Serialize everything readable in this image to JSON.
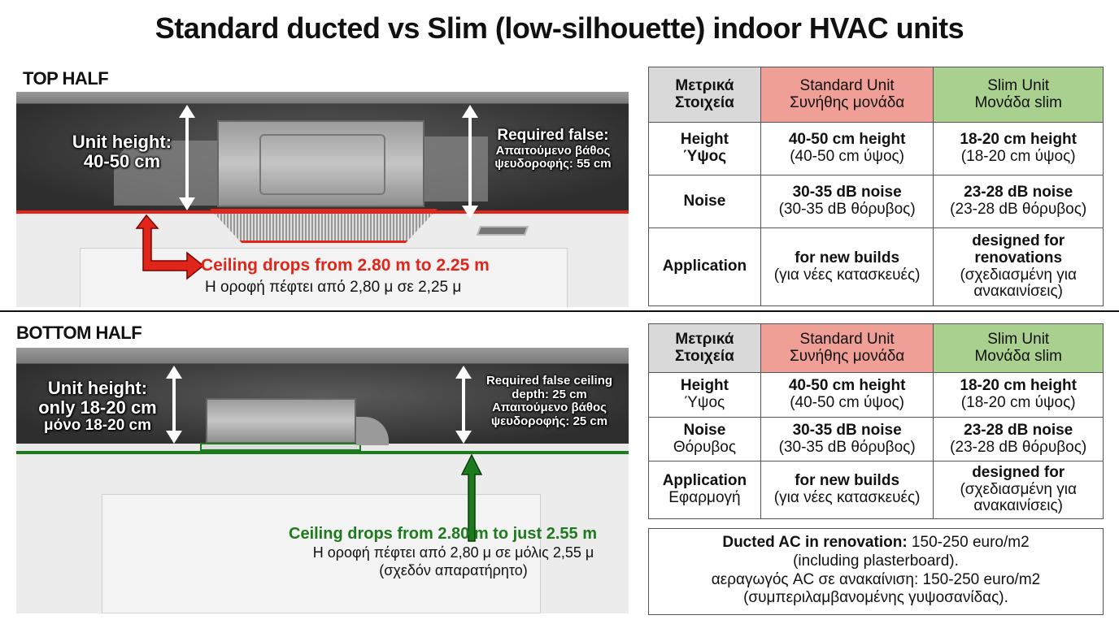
{
  "title": "Standard ducted vs Slim (low-silhouette) indoor HVAC units",
  "top": {
    "label": "TOP HALF",
    "unit_height_label": "Unit height:",
    "unit_height_value": "40-50 cm",
    "required_en": "Required false:",
    "required_gr1": "Απαιτούμενο βάθος",
    "required_gr2": "ψευδοροφής: 55 cm",
    "drop_en": "Ceiling drops from 2.80 m to 2.25 m",
    "drop_gr": "Η οροφή πέφτει από 2,80 μ σε 2,25 μ",
    "accent": "#e0261b",
    "table": {
      "headers": [
        [
          "Μετρικά",
          "Στοιχεία"
        ],
        [
          "Standard Unit",
          "Συνήθης μονάδα"
        ],
        [
          "Slim Unit",
          "Μονάδα slim"
        ]
      ],
      "rows": [
        {
          "metric": [
            "Height",
            "Ύψος"
          ],
          "standard": [
            "40-50 cm height",
            "(40-50 cm ύψος)"
          ],
          "slim": [
            "18-20 cm height",
            "(18-20 cm ύψος)"
          ]
        },
        {
          "metric": [
            "Noise"
          ],
          "standard": [
            "30-35 dB noise",
            "(30-35 dB θόρυβος)"
          ],
          "slim": [
            "23-28 dB noise",
            "(23-28 dB θόρυβος)"
          ]
        },
        {
          "metric": [
            "Application"
          ],
          "standard": [
            "for new builds",
            "(για νέες κατασκευές)"
          ],
          "slim": [
            "designed for",
            "renovations",
            "(σχεδιασμένη για",
            "ανακαινίσεις)"
          ]
        }
      ]
    }
  },
  "bottom": {
    "label": "BOTTOM HALF",
    "unit_height_label": "Unit height:",
    "unit_height_value": "only 18-20 cm",
    "unit_height_gr": "μόνο 18-20 cm",
    "required_en1": "Required false ceiling",
    "required_en2": "depth: 25 cm",
    "required_gr1": "Απαιτούμενο βάθος",
    "required_gr2": "ψευδοροφής: 25 cm",
    "drop_en": "Ceiling drops from 2.80 m to just 2.55 m",
    "drop_gr": "Η οροφή πέφτει από 2,80 μ σε μόλις 2,55 μ",
    "drop_gr2": "(σχεδόν απαρατήρητο)",
    "accent": "#1e7a1e",
    "table": {
      "headers": [
        [
          "Μετρικά",
          "Στοιχεία"
        ],
        [
          "Standard Unit",
          "Συνήθης μονάδα"
        ],
        [
          "Slim Unit",
          "Μονάδα slim"
        ]
      ],
      "rows": [
        {
          "metric": [
            "Height",
            "Ύψος"
          ],
          "standard": [
            "40-50 cm height",
            "(40-50 cm ύψος)"
          ],
          "slim": [
            "18-20 cm height",
            "(18-20 cm ύψος)"
          ]
        },
        {
          "metric": [
            "Noise",
            "Θόρυβος"
          ],
          "standard": [
            "30-35 dB noise",
            "(30-35 dB θόρυβος)"
          ],
          "slim": [
            "23-28 dB noise",
            "(23-28 dB θόρυβος)"
          ]
        },
        {
          "metric": [
            "Application",
            "Εφαρμογή"
          ],
          "standard": [
            "for new builds",
            "(για νέες κατασκευές)"
          ],
          "slim": [
            "designed for",
            "(σχεδιασμένη για",
            "ανακαινίσεις)"
          ]
        }
      ]
    }
  },
  "note": {
    "bold": "Ducted AC in renovation:",
    "text": " 150-250 euro/m2",
    "line2": "(including plasterboard).",
    "line3": "αεραγωγός AC σε ανακαίνιση: 150-250 euro/m2",
    "line4": "(συμπεριλαμβανομένης γυψοσανίδας)."
  }
}
